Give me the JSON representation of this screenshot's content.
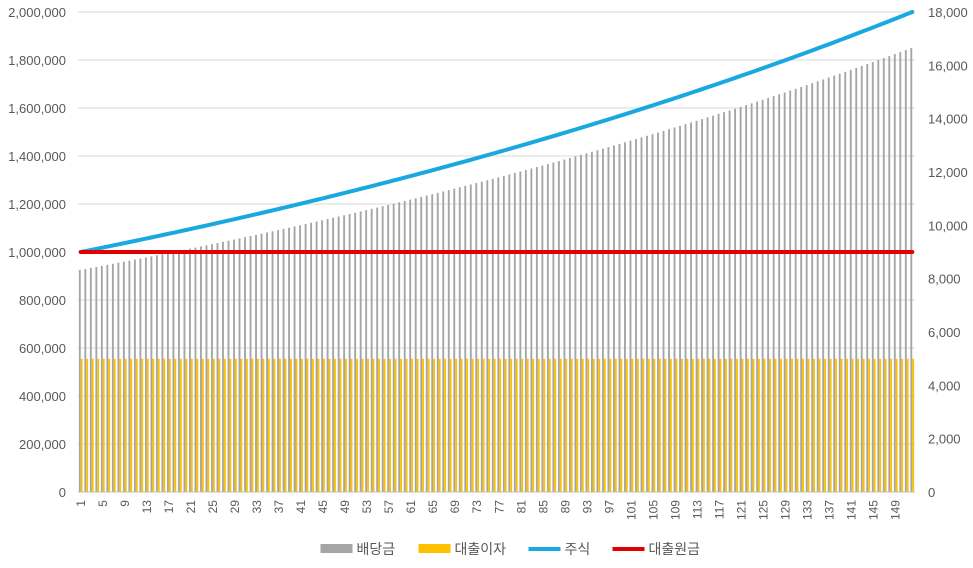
{
  "chart_data": {
    "type": "bar-line-combo",
    "title": "",
    "x": {
      "start": 1,
      "end": 152,
      "tick_step": 4,
      "tick_labels": [
        "1",
        "5",
        "9",
        "13",
        "17",
        "21",
        "25",
        "29",
        "33",
        "37",
        "41",
        "45",
        "49",
        "53",
        "57",
        "61",
        "65",
        "69",
        "73",
        "77",
        "81",
        "85",
        "89",
        "93",
        "97",
        "101",
        "105",
        "109",
        "113",
        "117",
        "121",
        "125",
        "129",
        "133",
        "137",
        "141",
        "145",
        "149"
      ]
    },
    "y_left": {
      "min": 0,
      "max": 2000000,
      "step": 200000,
      "tick_labels": [
        "0",
        "200,000",
        "400,000",
        "600,000",
        "800,000",
        "1,000,000",
        "1,200,000",
        "1,400,000",
        "1,600,000",
        "1,800,000",
        "2,000,000"
      ]
    },
    "y_right": {
      "min": 0,
      "max": 18000,
      "step": 2000,
      "tick_labels": [
        "0",
        "2,000",
        "4,000",
        "6,000",
        "8,000",
        "10,000",
        "12,000",
        "14,000",
        "16,000",
        "18,000"
      ]
    },
    "series": [
      {
        "name": "배당금",
        "kind": "bar",
        "axis": "left",
        "color": "#a5a5a5",
        "start_value": 925000,
        "end_value": 1850000,
        "growth": "compound"
      },
      {
        "name": "대출이자",
        "kind": "bar",
        "axis": "left",
        "color": "#ffc000",
        "constant_value": 555000
      },
      {
        "name": "주식",
        "kind": "line",
        "axis": "right",
        "color": "#19a9e0",
        "start_value": 9000,
        "end_value": 18000,
        "growth": "compound"
      },
      {
        "name": "대출원금",
        "kind": "line",
        "axis": "right",
        "color": "#e00000",
        "constant_value": 9000
      }
    ],
    "legend": {
      "position": "bottom"
    },
    "gridlines": true
  }
}
